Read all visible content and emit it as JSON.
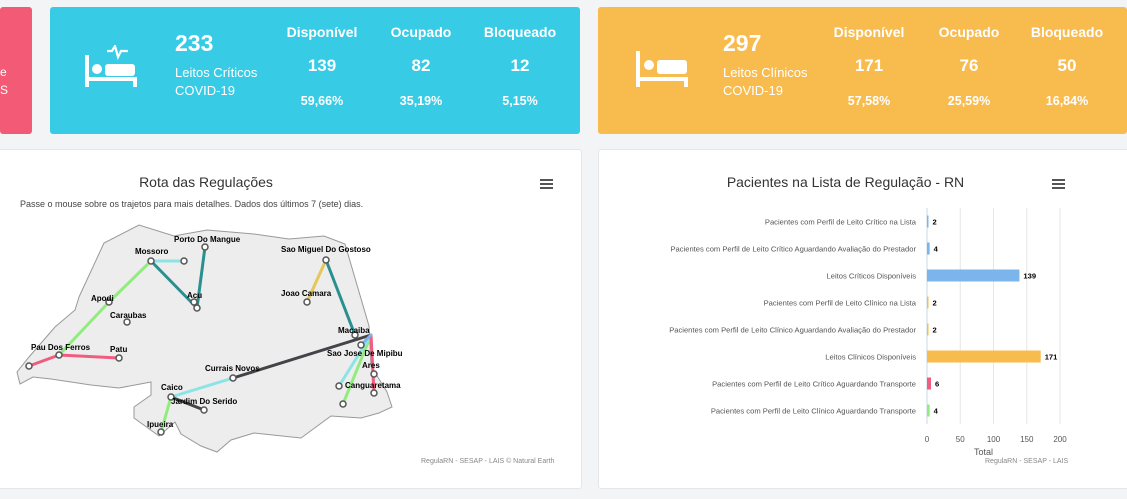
{
  "left_card": {
    "frag1": "e",
    "frag2": "S"
  },
  "critical": {
    "total": "233",
    "label_line1": "Leitos Críticos",
    "label_line2": "COVID-19",
    "columns": [
      {
        "header": "Disponível",
        "value": "139",
        "pct": "59,66%"
      },
      {
        "header": "Ocupado",
        "value": "82",
        "pct": "35,19%"
      },
      {
        "header": "Bloqueado",
        "value": "12",
        "pct": "5,15%"
      }
    ],
    "color": "#38cbe6"
  },
  "clinical": {
    "total": "297",
    "label_line1": "Leitos Clínicos",
    "label_line2": "COVID-19",
    "columns": [
      {
        "header": "Disponível",
        "value": "171",
        "pct": "57,58%"
      },
      {
        "header": "Ocupado",
        "value": "76",
        "pct": "25,59%"
      },
      {
        "header": "Bloqueado",
        "value": "50",
        "pct": "16,84%"
      }
    ],
    "color": "#f8bb4d"
  },
  "map_panel": {
    "title": "Rota das Regulações",
    "subtitle": "Passe o mouse sobre os trajetos para mais detalhes. Dados dos últimos 7 (sete) dias.",
    "credits": "RegulaRN - SESAP - LAIS © Natural Earth",
    "cities": [
      "Porto Do Mangue",
      "Mossoro",
      "Sao Miguel Do Gostoso",
      "Apodi",
      "Acu",
      "Joao Camara",
      "Caraubas",
      "Macaiba",
      "Pau Dos Ferros",
      "Patu",
      "Sao Jose De Mipibu",
      "Ares",
      "Currais Novos",
      "Canguaretama",
      "Caico",
      "Jardim Do Serido",
      "Ipueira"
    ]
  },
  "chart_panel": {
    "title": "Pacientes na Lista de Regulação - RN",
    "credits": "RegulaRN - SESAP - LAIS",
    "xlabel": "Total"
  },
  "chart_data": {
    "type": "bar",
    "orientation": "horizontal",
    "title": "Pacientes na Lista de Regulação - RN",
    "xlabel": "Total",
    "xlim": [
      0,
      200
    ],
    "xticks": [
      "0",
      "50",
      "100",
      "150",
      "200"
    ],
    "categories": [
      "Pacientes com Perfil de Leito Crítico na Lista",
      "Pacientes com Perfil de Leito Crítico Aguardando Avaliação do Prestador",
      "Leitos Críticos Disponíveis",
      "Pacientes com Perfil de Leito Clínico na Lista",
      "Pacientes com Perfil de Leito Clínico Aguardando Avaliação do Prestador",
      "Leitos Clínicos Disponíveis",
      "Pacientes com Perfil de Leito Crítico Aguardando Transporte",
      "Pacientes com Perfil de Leito Clínico Aguardando Transporte"
    ],
    "values": [
      2,
      4,
      139,
      2,
      2,
      171,
      6,
      4
    ],
    "colors": [
      "#7cb5ec",
      "#7cb5ec",
      "#7cb5ec",
      "#f8bb4d",
      "#f8bb4d",
      "#f8bb4d",
      "#f15c80",
      "#90ed7d"
    ],
    "grid": true,
    "data_labels": true
  }
}
